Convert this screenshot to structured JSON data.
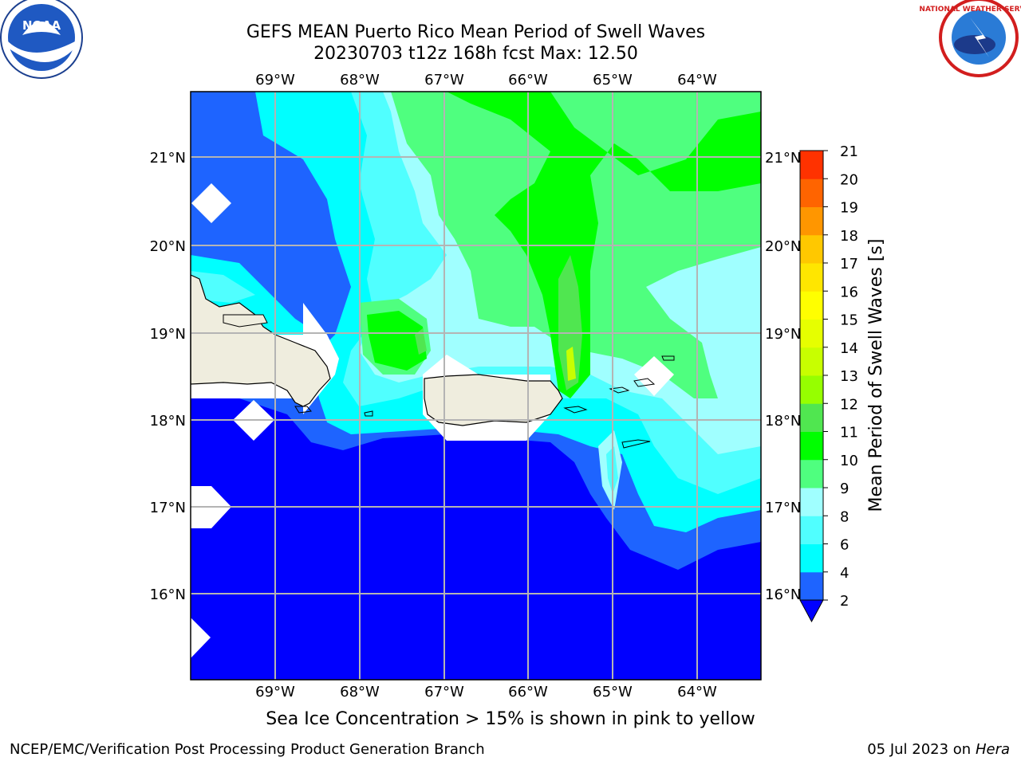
{
  "header": {
    "title_line1": "GEFS MEAN Puerto Rico Mean Period of Swell Waves",
    "title_line2": "20230703 t12z 168h fcst   Max: 12.50"
  },
  "logos": {
    "left": {
      "name": "noaa-logo",
      "text": "NOAA"
    },
    "right": {
      "name": "nws-logo",
      "text": "NATIONAL WEATHER SERVICE"
    }
  },
  "map": {
    "lon_labels": [
      "69°W",
      "68°W",
      "67°W",
      "66°W",
      "65°W",
      "64°W"
    ],
    "lat_labels": [
      "21°N",
      "20°N",
      "19°N",
      "18°N",
      "17°N",
      "16°N"
    ],
    "colors": {
      "ocean_deep": "#0000ff",
      "band_2_4": "#1e64ff",
      "band_4_6": "#00ffff",
      "band_6_8": "#50ffff",
      "band_8_9": "#a0ffff",
      "band_9_10": "#4fff7f",
      "band_10_11": "#00ff00",
      "band_11_12": "#50e650",
      "band_12_13": "#c8ff00",
      "land": "#efedde",
      "grid": "#b4b4b4",
      "missing": "#ffffff"
    }
  },
  "colorbar": {
    "label": "Mean Period of Swell Waves [s]",
    "ticks": [
      "2",
      "4",
      "6",
      "8",
      "9",
      "10",
      "11",
      "12",
      "13",
      "14",
      "15",
      "16",
      "17",
      "18",
      "19",
      "20",
      "21"
    ],
    "colors": [
      "#1e64ff",
      "#00ffff",
      "#50ffff",
      "#a0ffff",
      "#4fff7f",
      "#00ff00",
      "#50e650",
      "#96ff00",
      "#c8ff00",
      "#e6ff00",
      "#ffff00",
      "#ffe600",
      "#ffc800",
      "#ff9600",
      "#ff6400",
      "#ff3200",
      "#ff0000"
    ],
    "under_color": "#0000ff"
  },
  "caption": "Sea Ice Concentration > 15% is shown in pink to yellow",
  "footer": {
    "left": "NCEP/EMC/Verification Post Processing Product Generation Branch",
    "right_prefix": "05 Jul 2023 on ",
    "right_italic": "Hera"
  }
}
